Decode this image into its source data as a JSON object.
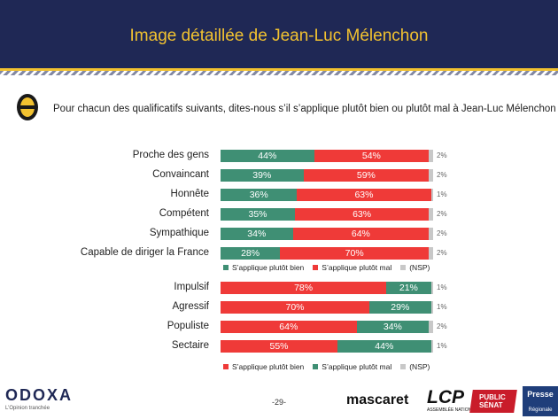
{
  "header": {
    "title": "Image détaillée de Jean-Luc Mélenchon"
  },
  "question": "Pour chacun des qualificatifs suivants, dites-nous s’il s’applique plutôt bien ou plutôt mal à Jean-Luc Mélenchon :",
  "colors": {
    "green": "#3f8f74",
    "red": "#ef3a38",
    "grey": "#c8c8c8",
    "navy": "#1f2855",
    "gold": "#f2c230"
  },
  "chart_data": [
    {
      "type": "bar",
      "stacked": true,
      "orientation": "horizontal",
      "categories": [
        "Proche des gens",
        "Convaincant",
        "Honnête",
        "Compétent",
        "Sympathique",
        "Capable de diriger la France"
      ],
      "series": [
        {
          "name": "S’applique plutôt bien",
          "color": "#3f8f74",
          "values": [
            44,
            39,
            36,
            35,
            34,
            28
          ],
          "labels": [
            "44%",
            "39%",
            "36%",
            "35%",
            "34%",
            "28%"
          ]
        },
        {
          "name": "S’applique plutôt mal",
          "color": "#ef3a38",
          "values": [
            54,
            59,
            63,
            63,
            64,
            70
          ],
          "labels": [
            "54%",
            "59%",
            "63%",
            "63%",
            "64%",
            "70%"
          ]
        },
        {
          "name": "(NSP)",
          "color": "#c8c8c8",
          "values": [
            2,
            2,
            1,
            2,
            2,
            2
          ],
          "labels": [
            "2%",
            "2%",
            "1%",
            "2%",
            "2%",
            "2%"
          ]
        }
      ]
    },
    {
      "type": "bar",
      "stacked": true,
      "orientation": "horizontal",
      "categories": [
        "Impulsif",
        "Agressif",
        "Populiste",
        "Sectaire"
      ],
      "series": [
        {
          "name": "S’applique plutôt bien",
          "color": "#ef3a38",
          "values": [
            78,
            70,
            64,
            55
          ],
          "labels": [
            "78%",
            "70%",
            "64%",
            "55%"
          ]
        },
        {
          "name": "S’applique plutôt mal",
          "color": "#3f8f74",
          "values": [
            21,
            29,
            34,
            44
          ],
          "labels": [
            "21%",
            "29%",
            "34%",
            "44%"
          ]
        },
        {
          "name": "(NSP)",
          "color": "#c8c8c8",
          "values": [
            1,
            1,
            2,
            1
          ],
          "labels": [
            "1%",
            "1%",
            "2%",
            "1%"
          ]
        }
      ]
    }
  ],
  "footer": {
    "brand": "ODOXA",
    "tagline": "L’Opinion tranchée",
    "page": "-29-",
    "partner1": "mascaret",
    "partner2": "LCP",
    "partner2_sub": "ASSEMBLÉE NATIONALE",
    "partner3_line1": "PUBLIC",
    "partner3_line2": "SÉNAT",
    "partner4_line1": "Presse",
    "partner4_line2": "Régionale"
  }
}
